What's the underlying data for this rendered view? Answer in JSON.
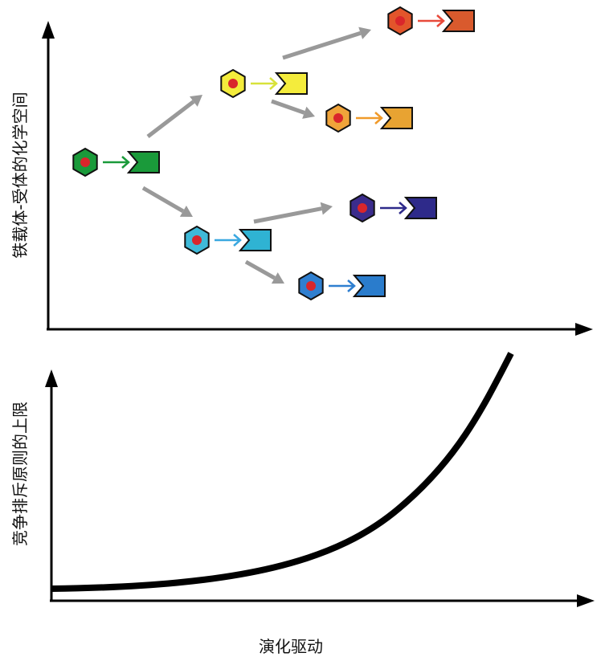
{
  "top_panel": {
    "ylabel": "铁载体-受体的化学空间",
    "nodes": [
      {
        "id": "green",
        "hex_color": "#1a9a3a",
        "arrow_color": "#1a9a3a",
        "receptor_color": "#1a9a3a"
      },
      {
        "id": "yellow",
        "hex_color": "#f4ec3c",
        "arrow_color": "#d8e23a",
        "receptor_color": "#f4ec3c"
      },
      {
        "id": "orange-red",
        "hex_color": "#e2552b",
        "arrow_color": "#e84a3a",
        "receptor_color": "#d95a2d"
      },
      {
        "id": "orange",
        "hex_color": "#f0a43a",
        "arrow_color": "#f09a2a",
        "receptor_color": "#e8a332"
      },
      {
        "id": "cyan",
        "hex_color": "#3fb9d8",
        "arrow_color": "#3aa8e0",
        "receptor_color": "#2fb3d3"
      },
      {
        "id": "navy",
        "hex_color": "#3b2c8c",
        "arrow_color": "#2e2a8a",
        "receptor_color": "#2e2a8a"
      },
      {
        "id": "blue",
        "hex_color": "#2f7fd0",
        "arrow_color": "#2f7fd0",
        "receptor_color": "#2a7ccc"
      }
    ],
    "dot_color": "#d9262b",
    "branch_arrow_color": "#999999"
  },
  "bottom_panel": {
    "ylabel": "竞争排斥原则的上限",
    "xlabel": "演化驱动"
  }
}
